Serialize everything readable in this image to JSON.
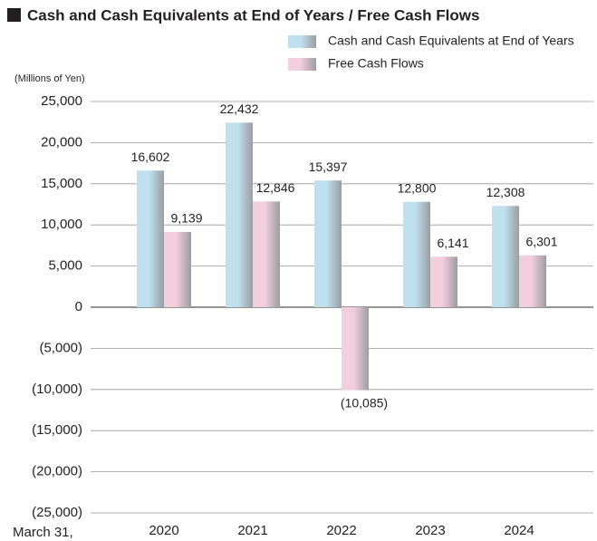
{
  "chart_data": {
    "type": "bar",
    "title": "Cash and Cash Equivalents at End of Years / Free Cash Flows",
    "y_label": "(Millions of Yen)",
    "x_label": "March 31,",
    "categories": [
      "2020",
      "2021",
      "2022",
      "2023",
      "2024"
    ],
    "series": [
      {
        "name": "Cash and Cash Equivalents at End of Years",
        "color": "#bfe0ee",
        "values": [
          16602,
          22432,
          15397,
          12800,
          12308
        ],
        "value_labels": [
          "16,602",
          "22,432",
          "15,397",
          "12,800",
          "12,308"
        ]
      },
      {
        "name": "Free Cash Flows",
        "color": "#f3cedd",
        "values": [
          9139,
          12846,
          -10085,
          6141,
          6301
        ],
        "value_labels": [
          "9,139",
          "12,846",
          "(10,085)",
          "6,141",
          "6,301"
        ]
      }
    ],
    "ylim": [
      -25000,
      25000
    ],
    "yticks": [
      {
        "value": -25000,
        "label": "(25,000)"
      },
      {
        "value": -20000,
        "label": "(20,000)"
      },
      {
        "value": -15000,
        "label": "(15,000)"
      },
      {
        "value": -10000,
        "label": "(10,000)"
      },
      {
        "value": -5000,
        "label": "(5,000)"
      },
      0,
      {
        "value": 5000,
        "label": "5,000"
      },
      {
        "value": 10000,
        "label": "10,000"
      },
      {
        "value": 15000,
        "label": "15,000"
      },
      {
        "value": 20000,
        "label": "20,000"
      },
      {
        "value": 25000,
        "label": "25,000"
      }
    ],
    "grid": true
  }
}
